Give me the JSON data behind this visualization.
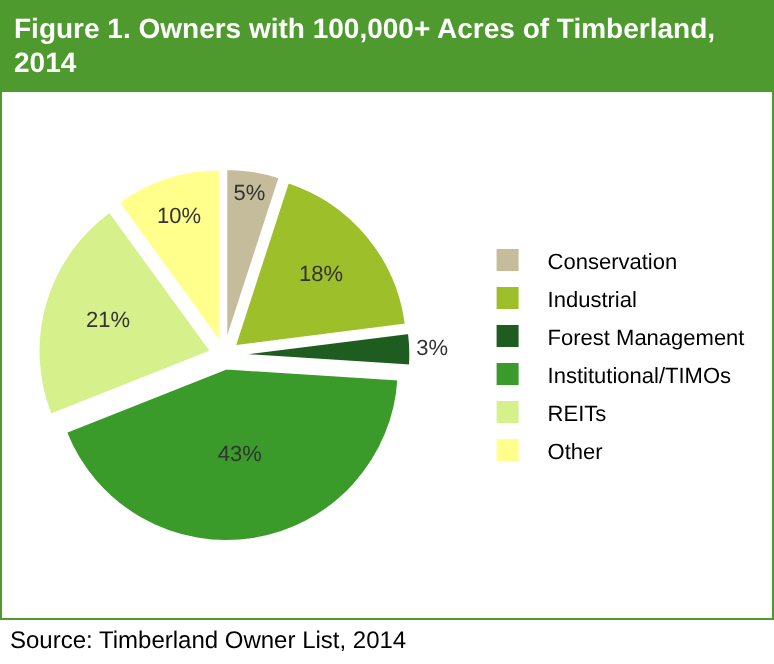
{
  "chart_data": {
    "type": "pie",
    "title": "Figure 1.  Owners with 100,000+ Acres of Timberland, 2014",
    "categories": [
      "Conservation",
      "Industrial",
      "Forest Management",
      "Institutional/TIMOs",
      "REITs",
      "Other"
    ],
    "values": [
      5,
      18,
      3,
      43,
      21,
      10
    ],
    "value_labels": [
      "5%",
      "18%",
      "3%",
      "43%",
      "21%",
      "10%"
    ],
    "colors": [
      "#c4bc9a",
      "#9cbf2a",
      "#1f5c1f",
      "#3a9a2a",
      "#d6f08c",
      "#ffff8c"
    ],
    "legend": "right",
    "annotations": [
      "Source: Timberland Owner List, 2014"
    ]
  }
}
